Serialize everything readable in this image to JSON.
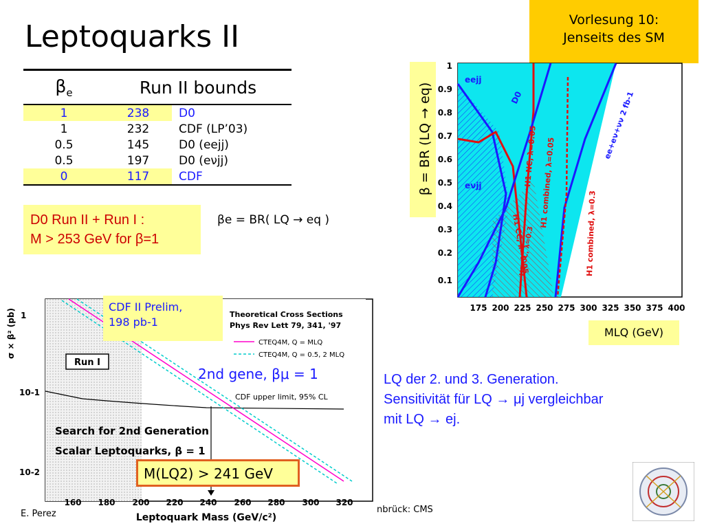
{
  "title": "Leptoquarks II",
  "lecture": {
    "line1": "Vorlesung 10:",
    "line2": "Jenseits des SM"
  },
  "table": {
    "headers": [
      "βe",
      "Run II bounds"
    ],
    "rows": [
      {
        "beta": "1",
        "bound": "238",
        "exp": "D0"
      },
      {
        "beta": "1",
        "bound": "232",
        "exp": "CDF (LP’03)"
      },
      {
        "beta": "0.5",
        "bound": "145",
        "exp": "D0 (eejj)"
      },
      {
        "beta": "0.5",
        "bound": "197",
        "exp": "D0 (eνjj)"
      },
      {
        "beta": "0",
        "bound": "117",
        "exp": "CDF"
      }
    ]
  },
  "result": {
    "line1": "D0 Run II + Run I :",
    "line2": "M > 253 GeV for β=1"
  },
  "beta_def": "βe = BR( LQ → eq )",
  "right_plot": {
    "ylabel": "β = BR (LQ → eq)",
    "xlabel": "MLQ (GeV)",
    "x_ticks": [
      "175",
      "200",
      "225",
      "250",
      "275",
      "300",
      "325",
      "350",
      "375",
      "400"
    ],
    "y_ticks": [
      "1",
      "0.9",
      "0.8",
      "0.7",
      "0.6",
      "0.5",
      "0.4",
      "0.3",
      "0.2",
      "0.1"
    ],
    "labels": {
      "eejj": "eejj",
      "evjj": "eνjj",
      "d0": "D0",
      "h1nc": "H1 NC, λ=0.05",
      "h1comb1": "H1 combined, λ=0.05",
      "h1comb2": "H1 combined, λ=0.3",
      "h1cc": "H1 CC, λ=0.05",
      "h1x": "H1 CC, λ=0.3",
      "eeev": "ee+eν+νν 2 fb-1"
    },
    "colors": {
      "fill": "#00e5ee",
      "blue": "#1a1aff",
      "red": "#e01010"
    }
  },
  "bottom_plot": {
    "ylabel": "σ × β² (pb)",
    "xlabel": "Leptoquark Mass (GeV/c²)",
    "x_ticks": [
      "160",
      "180",
      "200",
      "220",
      "240",
      "260",
      "280",
      "300",
      "320"
    ],
    "y_ticks": [
      "1",
      "10-1",
      "10-2"
    ],
    "run1": "Run I",
    "cdf_limit": "CDF upper limit, 95% CL",
    "search_line1": "Search for 2nd Generation",
    "search_line2": "Scalar Leptoquarks, β = 1",
    "theory": {
      "line1": "Theoretical Cross Sections",
      "line2": "Phys Rev Lett 79, 341, '97",
      "leg1": "CTEQ4M, Q = MLQ",
      "leg2": "CTEQ4M, Q = 0.5, 2 MLQ"
    }
  },
  "cdf_prelim": {
    "line1": "CDF II Prelim,",
    "line2": "198 pb-1"
  },
  "gene": "2nd gene, βμ = 1",
  "mlq2": "M(LQ2) > 241 GeV",
  "lq_text": {
    "line1": "LQ der 2. und 3. Generation.",
    "line2": "Sensitivität für LQ → μj vergleichbar",
    "line3": "mit LQ → ej."
  },
  "mlq": "MLQ (GeV)",
  "footer": {
    "author": "E. Perez",
    "source": "nbrück: CMS"
  }
}
